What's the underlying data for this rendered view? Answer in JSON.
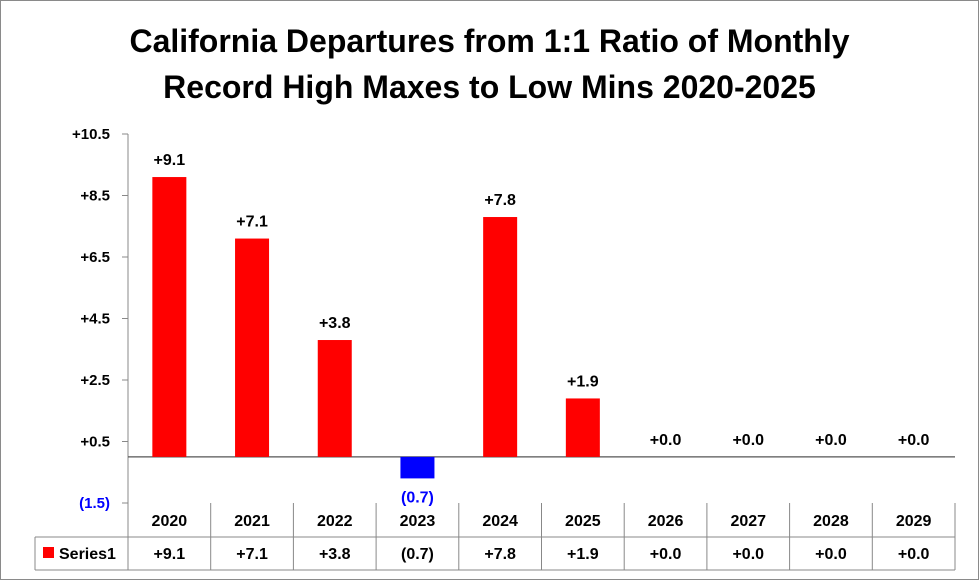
{
  "chart_data": {
    "type": "bar",
    "title_lines": [
      "California Departures from 1:1 Ratio of Monthly",
      "Record High Maxes to Low Mins 2020-2025"
    ],
    "categories": [
      "2020",
      "2021",
      "2022",
      "2023",
      "2024",
      "2025",
      "2026",
      "2027",
      "2028",
      "2029"
    ],
    "series": [
      {
        "name": "Series1",
        "values": [
          9.1,
          7.1,
          3.8,
          -0.7,
          7.8,
          1.9,
          0.0,
          0.0,
          0.0,
          0.0
        ],
        "labels": [
          "+9.1",
          "+7.1",
          "+3.8",
          "(0.7)",
          "+7.8",
          "+1.9",
          "+0.0",
          "+0.0",
          "+0.0",
          "+0.0"
        ],
        "positive_color": "#ff0000",
        "negative_color": "#0000ff"
      }
    ],
    "ylim": [
      -1.5,
      10.5
    ],
    "yticks": [
      {
        "value": 10.5,
        "label": "+10.5"
      },
      {
        "value": 8.5,
        "label": "+8.5"
      },
      {
        "value": 6.5,
        "label": "+6.5"
      },
      {
        "value": 4.5,
        "label": "+4.5"
      },
      {
        "value": 2.5,
        "label": "+2.5"
      },
      {
        "value": 0.5,
        "label": "+0.5"
      },
      {
        "value": -1.5,
        "label": "(1.5)"
      }
    ],
    "negative_label_color": "#0000ff",
    "grid": false,
    "legend": "data-table"
  }
}
